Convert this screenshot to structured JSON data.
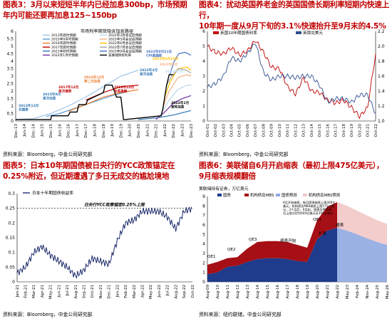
{
  "figures": [
    {
      "title": "图表3：3月以来短短半年内已经加息300bp，市场预期\n年内可能还要再加息125~150bp",
      "source": "资料来源：Bloomberg，中金公司研究部",
      "chart_data": {
        "type": "line",
        "title": "市场利率期货隐含加息路径",
        "x_ticks": [
          "Dec-13",
          "Jun-14",
          "Dec-14",
          "Jun-15",
          "Dec-15",
          "Jun-16",
          "Dec-16",
          "Jun-17",
          "Dec-17",
          "Jun-18",
          "Dec-18",
          "Jun-19",
          "Dec-19",
          "Jun-20",
          "Dec-20",
          "Jun-21",
          "Dec-21",
          "Jun-22",
          "Dec-22",
          "Jun-23",
          "Dec-23"
        ],
        "y_ticks": [
          "0",
          "0.5",
          "1",
          "1.5",
          "2",
          "2.5",
          "3",
          "3.5",
          "4",
          "4.5",
          "5",
          "5.5",
          "6"
        ],
        "ylim": [
          0,
          6
        ],
        "legend": [
          "2013年底时预期",
          "2015年9月时预期",
          "2016年底时预期",
          "2017年底时预期",
          "2021年初时预期",
          "2022年1月时预期",
          "2022年3月会议后预期",
          "2022年5月会议后预期",
          "2022年6月会议后预期",
          "2022年7月会议后预期",
          "2022年9月会议后预期",
          "美联储目标利率"
        ],
        "series": [
          {
            "name": "2013年底时预期",
            "color": "#9dc3e6",
            "x": [
              0,
              2,
              4,
              6,
              8,
              10,
              12,
              14
            ],
            "y": [
              0.1,
              0.15,
              0.5,
              1.0,
              1.6,
              2.3,
              3.0,
              3.4
            ]
          },
          {
            "name": "2015年9月时预期",
            "color": "#5b9bd5",
            "x": [
              3.5,
              5,
              7,
              9,
              11,
              13
            ],
            "y": [
              0.3,
              0.5,
              0.9,
              1.3,
              1.7,
              2.0
            ]
          },
          {
            "name": "2016年底时预期",
            "color": "#ed7d31",
            "x": [
              6,
              8,
              10,
              12,
              14
            ],
            "y": [
              0.65,
              1.1,
              1.6,
              1.9,
              2.1
            ]
          },
          {
            "name": "2017年底时预期",
            "color": "#c00000",
            "x": [
              8,
              10,
              12,
              14
            ],
            "y": [
              1.4,
              1.9,
              2.3,
              2.4
            ]
          },
          {
            "name": "2021年初时预期",
            "color": "#2e75b6",
            "x": [
              14,
              16,
              18,
              20
            ],
            "y": [
              0.1,
              0.2,
              0.4,
              0.7
            ]
          },
          {
            "name": "2022年1月时预期",
            "color": "#7030a0",
            "x": [
              16,
              17,
              18,
              19,
              20
            ],
            "y": [
              0.1,
              0.6,
              1.2,
              1.5,
              1.7
            ]
          },
          {
            "name": "2022年3月会议后预期",
            "color": "#bdd7ee",
            "x": [
              16.5,
              17.5,
              18.5,
              19.5,
              20
            ],
            "y": [
              0.4,
              1.4,
              2.1,
              2.4,
              2.4
            ]
          },
          {
            "name": "2022年5月会议后预期",
            "color": "#f4b183",
            "x": [
              16.8,
              17.5,
              18.5,
              19.5,
              20
            ],
            "y": [
              0.9,
              2.0,
              2.9,
              3.1,
              3.0
            ]
          },
          {
            "name": "2022年6月会议后预期",
            "color": "#ffc000",
            "x": [
              17,
              17.6,
              18.5,
              19.5,
              20
            ],
            "y": [
              1.6,
              2.6,
              3.5,
              3.6,
              3.4
            ]
          },
          {
            "name": "2022年7月会议后预期",
            "color": "#a5a5a5",
            "x": [
              17.2,
              17.8,
              18.6,
              19.5,
              20
            ],
            "y": [
              2.4,
              3.0,
              3.5,
              3.4,
              3.2
            ]
          },
          {
            "name": "2022年9月会议后预期",
            "color": "#4472c4",
            "x": [
              17.6,
              18,
              18.6,
              19.3,
              20
            ],
            "y": [
              3.1,
              3.9,
              4.5,
              4.6,
              4.4
            ]
          },
          {
            "name": "美联储目标利率",
            "color": "#000000",
            "step": true,
            "x": [
              0,
              4,
              4.1,
              6,
              6.2,
              7,
              7.2,
              8,
              8.2,
              10,
              10.2,
              11,
              11.5,
              12,
              12.3,
              12.5,
              16.6,
              16.8,
              17.0,
              17.2,
              17.5,
              18.0
            ],
            "y": [
              0.1,
              0.1,
              0.35,
              0.35,
              0.6,
              0.6,
              1.1,
              1.1,
              1.4,
              1.9,
              2.4,
              2.4,
              1.6,
              1.6,
              0.1,
              0.1,
              0.35,
              0.85,
              1.6,
              2.35,
              3.1,
              3.1
            ]
          }
        ],
        "annotations": [
          "2013年12月\n式缩表",
          "2015年9月\n首次加息",
          "2017年12月\n首次缩表",
          "2016年12月\n第二次加息",
          "2018年12月\n加息高峰",
          "2022年3月\n首次加息",
          "2022年9月21日\nCPI高通胀",
          "2022年6月15日",
          "2022年5月",
          "2022年3月",
          "2022年1月\n首轮加息"
        ]
      }
    },
    {
      "title": "图表4：扰动英国养老金的英国国债长期利率短期内快速上行，\n10年期一度从9月下旬的3.1%快速抬升至9月末的4.5%",
      "source": "资料来源：Bloomberg，中金公司研究部",
      "chart_data": {
        "type": "line",
        "x_ticks": [
          "Oct-01",
          "Oct-02",
          "Oct-03",
          "Oct-04",
          "Oct-05",
          "Oct-06",
          "Oct-07",
          "Oct-08",
          "Oct-09",
          "Oct-10",
          "Oct-11",
          "Oct-12",
          "Oct-13",
          "Oct-14",
          "Oct-15",
          "Oct-16",
          "Oct-17",
          "Oct-18",
          "Oct-19",
          "Oct-20",
          "Oct-21",
          "Oct-22"
        ],
        "y_ticks": [
          "0",
          "1",
          "2",
          "3",
          "4",
          "5",
          "6"
        ],
        "y2_ticks": [
          "1.0",
          "1.2",
          "1.4",
          "1.6",
          "1.8",
          "2.0",
          "2.2"
        ],
        "ylim": [
          0,
          6
        ],
        "y2lim": [
          1.0,
          2.2
        ],
        "series": [
          {
            "name": "英国10年期国债利率",
            "color": "#c00000",
            "axis": "left",
            "values": [
              5.0,
              4.6,
              4.5,
              4.9,
              4.4,
              4.7,
              5.4,
              4.6,
              3.6,
              3.5,
              2.3,
              1.8,
              2.9,
              2.0,
              1.9,
              1.4,
              1.2,
              1.4,
              0.9,
              0.3,
              0.9,
              4.5
            ]
          },
          {
            "name": "英镑兑美元",
            "color": "#2e4e8f",
            "axis": "right",
            "values": [
              1.45,
              1.5,
              1.6,
              1.85,
              1.8,
              1.9,
              2.05,
              1.65,
              1.55,
              1.6,
              1.6,
              1.58,
              1.6,
              1.6,
              1.48,
              1.25,
              1.3,
              1.3,
              1.25,
              1.35,
              1.35,
              1.1
            ]
          }
        ]
      }
    },
    {
      "title": "图表5：日本10年期国债被日央行的YCC政策锚定在\n0.25%附近，但近期遭遇了多日无成交的尴尬境地",
      "source": "资料来源：Bloomberg，中金公司研究部",
      "chart_data": {
        "type": "line",
        "x_ticks": [
          "Jan-21",
          "Feb-21",
          "Mar-21",
          "Apr-21",
          "May-21",
          "Jun-21",
          "Jul-21",
          "Aug-21",
          "Sep-21",
          "Oct-21",
          "Nov-21",
          "Dec-21",
          "Jan-22",
          "Feb-22",
          "Mar-22",
          "Apr-22",
          "May-22",
          "Jun-22",
          "Jul-22",
          "Aug-22",
          "Sep-22",
          "Oct-22"
        ],
        "y_ticks": [
          "0",
          "0.05",
          "0.1",
          "0.15",
          "0.2",
          "0.25",
          "0.3"
        ],
        "ylim": [
          0,
          0.3
        ],
        "cap": 0.25,
        "cap_label": "日央行YCC政策锚定0.25%上限",
        "series": [
          {
            "name": "日本十年期国债收益率",
            "color": "#1f2d6e",
            "values": [
              0.03,
              0.05,
              0.1,
              0.12,
              0.09,
              0.07,
              0.05,
              0.02,
              0.04,
              0.08,
              0.07,
              0.06,
              0.14,
              0.2,
              0.21,
              0.24,
              0.24,
              0.24,
              0.22,
              0.18,
              0.24,
              0.25
            ]
          }
        ]
      }
    },
    {
      "title": "图表6：美联储自6月开启缩表（最初上限475亿美元），\n9月缩表规模翻倍",
      "source": "资料来源：纽约联储，中金公司研究部",
      "chart_data": {
        "type": "area",
        "ylabel": "美联储持有证券，万亿美元",
        "x_ticks": [
          "Aug-09",
          "Aug-10",
          "Aug-11",
          "Aug-12",
          "Aug-13",
          "Aug-14",
          "Aug-15",
          "Aug-16",
          "Aug-17",
          "Aug-18",
          "Aug-19",
          "Aug-20",
          "Aug-21",
          "Aug-22",
          "May-23",
          "Feb-24",
          "Nov-24",
          "Aug-25",
          "May-26"
        ],
        "y_ticks": [
          "0",
          "1",
          "2",
          "3",
          "4",
          "5",
          "6",
          "7",
          "8",
          "9"
        ],
        "ylim": [
          0,
          9
        ],
        "legend": [
          "国债",
          "机构债及MBS",
          "国债预测",
          "机构债及MBS预测"
        ],
        "series": [
          {
            "name": "国债",
            "color": "#1f3b8c",
            "values": [
              0.8,
              1.0,
              1.6,
              1.7,
              2.1,
              2.4,
              2.5,
              2.5,
              2.4,
              2.2,
              2.1,
              4.5,
              5.4,
              5.7,
              5.4,
              5.0,
              4.6,
              4.2,
              3.9
            ]
          },
          {
            "name": "机构债及MBS",
            "color": "#a50f15",
            "values": [
              1.0,
              1.1,
              0.9,
              0.9,
              1.4,
              1.8,
              1.8,
              1.8,
              1.8,
              1.7,
              1.5,
              2.0,
              2.5,
              2.7,
              2.6,
              2.5,
              2.4,
              2.3,
              2.2
            ]
          }
        ],
        "forecast_from": 13,
        "annotations": [
          "QE1",
          "QE2",
          "QE3",
          "QE4",
          "缩表开始",
          "扩表",
          "缩表"
        ],
        "note": "6月开始缩表，每月国债缩表上限300亿美元，机构债及MBS缩表上限175亿美元，3个月后，9月起，国债及MBS每月上限分别为600亿美元及350亿美元"
      }
    }
  ]
}
